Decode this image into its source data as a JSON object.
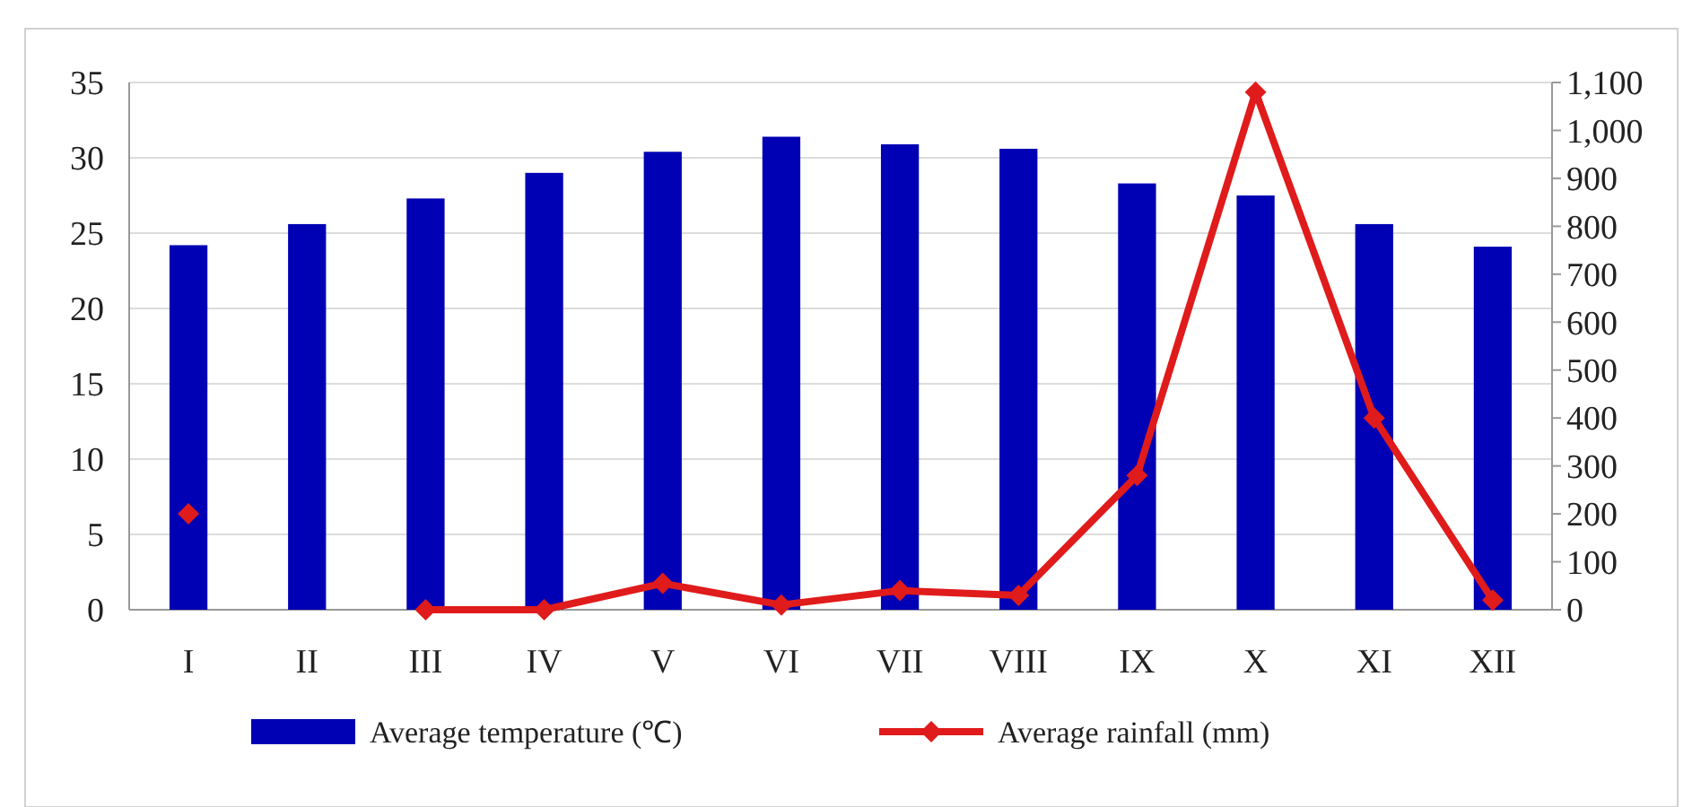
{
  "chart_data": {
    "type": "bar",
    "categories": [
      "I",
      "II",
      "III",
      "IV",
      "V",
      "VI",
      "VII",
      "VIII",
      "IX",
      "X",
      "XI",
      "XII"
    ],
    "series": [
      {
        "name": "Average temperature (℃)",
        "color": "#0000b4",
        "values": [
          24.2,
          25.6,
          27.3,
          29.0,
          30.4,
          31.4,
          30.9,
          30.6,
          28.3,
          27.5,
          25.6,
          24.1
        ]
      },
      {
        "name": "Average rainfall (mm)",
        "type": "line",
        "axis": "y2",
        "color": "#e01b1b",
        "marker": "diamond",
        "values": [
          200,
          null,
          0,
          0,
          55,
          10,
          40,
          30,
          280,
          1080,
          400,
          20
        ]
      }
    ],
    "ylim": [
      0,
      35
    ],
    "yticks": [
      0,
      5,
      10,
      15,
      20,
      25,
      30,
      35
    ],
    "y2lim": [
      0,
      1100
    ],
    "y2ticks": [
      0,
      100,
      200,
      300,
      400,
      500,
      600,
      700,
      800,
      900,
      {
        "value": 1000,
        "label": "1,000"
      },
      {
        "value": 1100,
        "label": "1,100"
      }
    ],
    "grid": "y",
    "legend": "bottom"
  }
}
